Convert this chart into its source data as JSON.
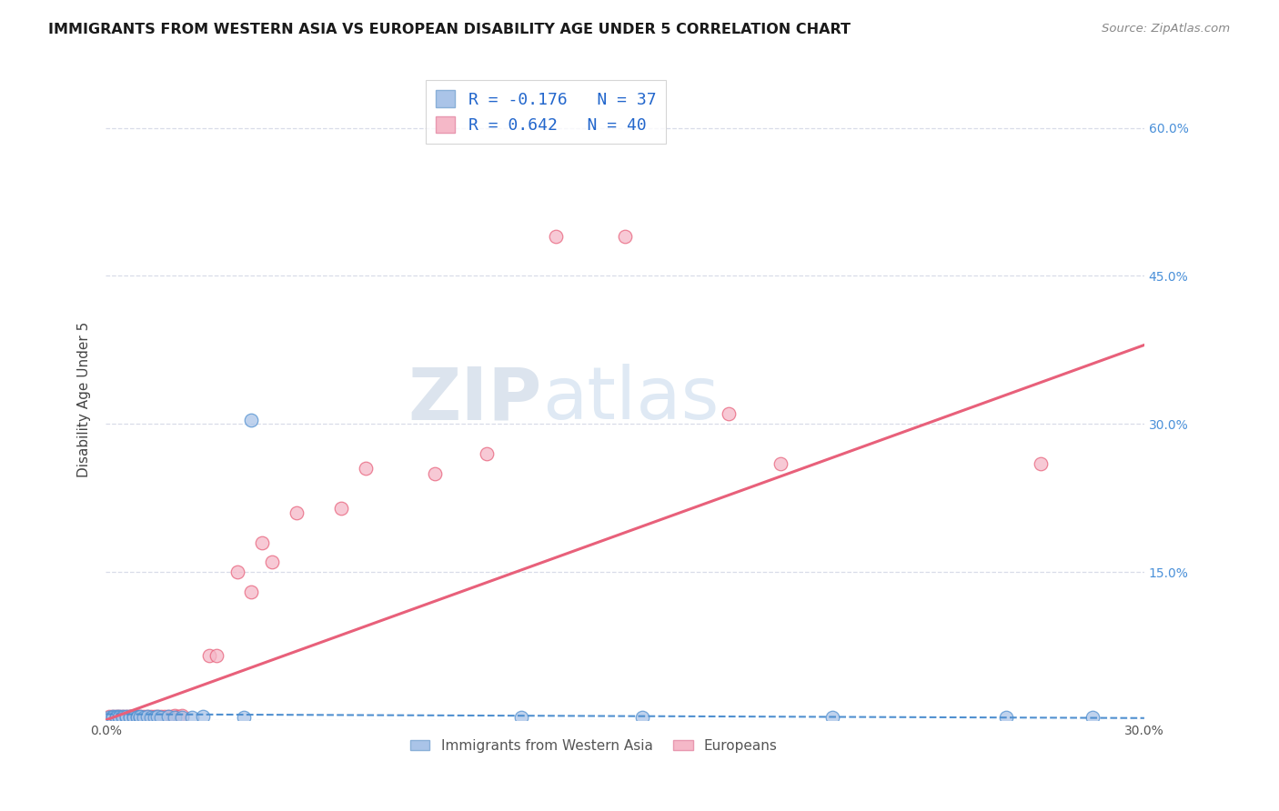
{
  "title": "IMMIGRANTS FROM WESTERN ASIA VS EUROPEAN DISABILITY AGE UNDER 5 CORRELATION CHART",
  "source": "Source: ZipAtlas.com",
  "ylabel": "Disability Age Under 5",
  "xlim": [
    0.0,
    0.3
  ],
  "ylim": [
    0.0,
    0.65
  ],
  "legend_sublabel1": "Immigrants from Western Asia",
  "legend_sublabel2": "Europeans",
  "color_blue": "#aac4e8",
  "color_pink": "#f5b8c8",
  "line_blue": "#5090d0",
  "line_pink": "#e8607a",
  "watermark_zip": "ZIP",
  "watermark_atlas": "atlas",
  "blue_R": "R = -0.176",
  "blue_N": "N = 37",
  "pink_R": "R = 0.642",
  "pink_N": "N = 40",
  "blue_scatter_x": [
    0.001,
    0.002,
    0.002,
    0.003,
    0.003,
    0.004,
    0.004,
    0.005,
    0.005,
    0.006,
    0.006,
    0.007,
    0.007,
    0.008,
    0.008,
    0.009,
    0.009,
    0.01,
    0.01,
    0.011,
    0.012,
    0.013,
    0.014,
    0.015,
    0.016,
    0.018,
    0.02,
    0.022,
    0.025,
    0.028,
    0.04,
    0.042,
    0.12,
    0.155,
    0.21,
    0.26,
    0.285
  ],
  "blue_scatter_y": [
    0.003,
    0.004,
    0.003,
    0.004,
    0.003,
    0.004,
    0.003,
    0.004,
    0.003,
    0.003,
    0.004,
    0.004,
    0.003,
    0.004,
    0.003,
    0.004,
    0.003,
    0.003,
    0.004,
    0.003,
    0.004,
    0.003,
    0.003,
    0.004,
    0.003,
    0.004,
    0.003,
    0.003,
    0.003,
    0.004,
    0.003,
    0.304,
    0.003,
    0.003,
    0.003,
    0.003,
    0.003
  ],
  "pink_scatter_x": [
    0.001,
    0.002,
    0.003,
    0.004,
    0.005,
    0.006,
    0.007,
    0.007,
    0.008,
    0.009,
    0.009,
    0.01,
    0.011,
    0.012,
    0.013,
    0.014,
    0.015,
    0.016,
    0.017,
    0.018,
    0.019,
    0.02,
    0.021,
    0.022,
    0.03,
    0.032,
    0.038,
    0.042,
    0.045,
    0.048,
    0.055,
    0.068,
    0.075,
    0.095,
    0.11,
    0.13,
    0.15,
    0.18,
    0.195,
    0.27
  ],
  "pink_scatter_y": [
    0.004,
    0.004,
    0.004,
    0.004,
    0.004,
    0.004,
    0.004,
    0.004,
    0.004,
    0.004,
    0.004,
    0.004,
    0.004,
    0.004,
    0.004,
    0.004,
    0.004,
    0.004,
    0.004,
    0.004,
    0.004,
    0.005,
    0.004,
    0.005,
    0.065,
    0.065,
    0.15,
    0.13,
    0.18,
    0.16,
    0.21,
    0.215,
    0.255,
    0.25,
    0.27,
    0.49,
    0.49,
    0.31,
    0.26,
    0.26
  ],
  "blue_line_x": [
    0.0,
    0.3
  ],
  "blue_line_y": [
    0.006,
    0.002
  ],
  "pink_line_x": [
    0.0,
    0.3
  ],
  "pink_line_y": [
    0.0,
    0.38
  ],
  "background_color": "#ffffff",
  "grid_color": "#d8dce8",
  "grid_yticks": [
    0.0,
    0.15,
    0.3,
    0.45,
    0.6
  ]
}
